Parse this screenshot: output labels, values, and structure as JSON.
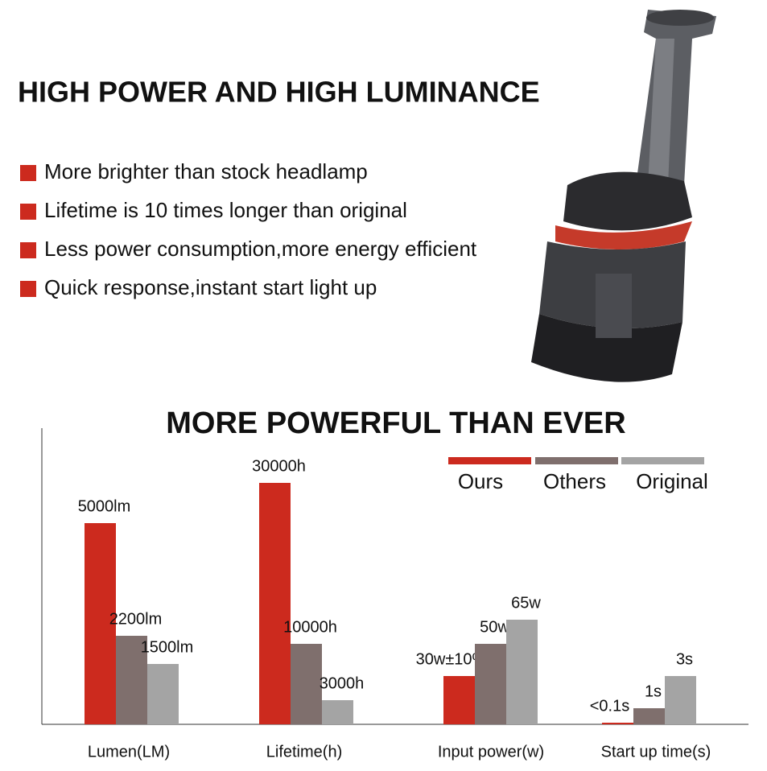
{
  "header": {
    "title": "HIGH POWER AND HIGH LUMINANCE",
    "bullets": [
      "More brighter than stock headlamp",
      "Lifetime is 10 times longer than original",
      "Less power consumption,more energy efficient",
      "Quick response,instant start light up"
    ]
  },
  "chart_data": {
    "type": "bar",
    "title": "MORE POWERFUL THAN EVER",
    "categories": [
      "Lumen(LM)",
      "Lifetime(h)",
      "Input power(w)",
      "Start up time(s)"
    ],
    "series": [
      {
        "name": "Ours",
        "color": "#cc2a1e",
        "values": [
          5000,
          30000,
          30,
          0.1
        ],
        "value_labels": [
          "5000lm",
          "30000h",
          "30w±10%",
          "<0.1s"
        ]
      },
      {
        "name": "Others",
        "color": "#7f6f6d",
        "values": [
          2200,
          10000,
          50,
          1
        ],
        "value_labels": [
          "2200lm",
          "10000h",
          "50w",
          "1s"
        ]
      },
      {
        "name": "Original",
        "color": "#a4a4a4",
        "values": [
          1500,
          3000,
          65,
          3
        ],
        "value_labels": [
          "1500lm",
          "3000h",
          "65w",
          "3s"
        ]
      }
    ]
  }
}
